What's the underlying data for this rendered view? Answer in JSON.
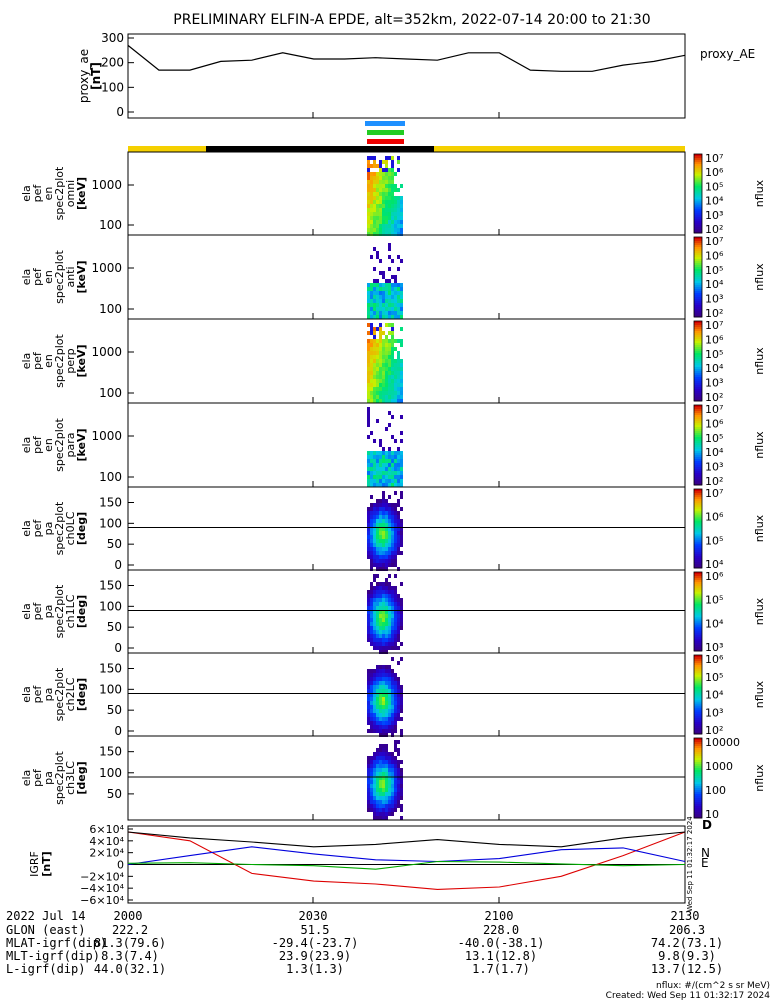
{
  "title": "PRELIMINARY ELFIN-A EPDE, alt=352km, 2022-07-14 20:00 to 21:30",
  "colors": {
    "sunlit": "#f5d000",
    "shadow": "#000000",
    "bar_blue": "#1e90ff",
    "bar_green": "#22cc22",
    "bar_red": "#ee0000"
  },
  "panels": [
    {
      "id": "ae",
      "ylabel": [
        "proxy_ae",
        "[nT]"
      ],
      "yticks": [
        "0",
        "100",
        "200",
        "300"
      ],
      "right_label": "proxy_AE"
    },
    {
      "id": "omni",
      "ylabel": [
        "ela",
        "pef",
        "en",
        "spec2plot",
        "omni",
        "[keV]"
      ],
      "yticks": [
        "100",
        "1000"
      ],
      "cb_ticks": [
        "10²",
        "10³",
        "10⁴",
        "10⁵",
        "10⁶",
        "10⁷"
      ],
      "cb_label": "nflux"
    },
    {
      "id": "anti",
      "ylabel": [
        "ela",
        "pef",
        "en",
        "spec2plot",
        "anti",
        "[keV]"
      ],
      "yticks": [
        "100",
        "1000"
      ],
      "cb_ticks": [
        "10²",
        "10³",
        "10⁴",
        "10⁵",
        "10⁶",
        "10⁷"
      ],
      "cb_label": "nflux"
    },
    {
      "id": "perp",
      "ylabel": [
        "ela",
        "pef",
        "en",
        "spec2plot",
        "perp",
        "[keV]"
      ],
      "yticks": [
        "100",
        "1000"
      ],
      "cb_ticks": [
        "10²",
        "10³",
        "10⁴",
        "10⁵",
        "10⁶",
        "10⁷"
      ],
      "cb_label": "nflux"
    },
    {
      "id": "para",
      "ylabel": [
        "ela",
        "pef",
        "en",
        "spec2plot",
        "para",
        "[keV]"
      ],
      "yticks": [
        "100",
        "1000"
      ],
      "cb_ticks": [
        "10²",
        "10³",
        "10⁴",
        "10⁵",
        "10⁶",
        "10⁷"
      ],
      "cb_label": "nflux"
    },
    {
      "id": "ch0",
      "ylabel": [
        "ela",
        "pef",
        "pa",
        "spec2plot",
        "ch0LC",
        "[deg]"
      ],
      "yticks": [
        "0",
        "50",
        "100",
        "150"
      ],
      "cb_ticks": [
        "10⁴",
        "10⁵",
        "10⁶",
        "10⁷"
      ],
      "cb_label": "nflux"
    },
    {
      "id": "ch1",
      "ylabel": [
        "ela",
        "pef",
        "pa",
        "spec2plot",
        "ch1LC",
        "[deg]"
      ],
      "yticks": [
        "0",
        "50",
        "100",
        "150"
      ],
      "cb_ticks": [
        "10³",
        "10⁴",
        "10⁵",
        "10⁶"
      ],
      "cb_label": "nflux"
    },
    {
      "id": "ch2",
      "ylabel": [
        "ela",
        "pef",
        "pa",
        "spec2plot",
        "ch2LC",
        "[deg]"
      ],
      "yticks": [
        "0",
        "50",
        "100",
        "150"
      ],
      "cb_ticks": [
        "10²",
        "10³",
        "10⁴",
        "10⁵",
        "10⁶"
      ],
      "cb_label": "nflux"
    },
    {
      "id": "ch3",
      "ylabel": [
        "ela",
        "pef",
        "pa",
        "spec2plot",
        "ch3LC",
        "[deg]"
      ],
      "yticks": [
        "50",
        "100",
        "150"
      ],
      "cb_ticks": [
        "10",
        "100",
        "1000",
        "10000"
      ],
      "cb_label": "nflux"
    },
    {
      "id": "igrf",
      "ylabel": [
        "IGRF",
        "[nT]"
      ],
      "yticks": [
        "−6×10⁴",
        "−4×10⁴",
        "−2×10⁴",
        "0",
        "2×10⁴",
        "4×10⁴",
        "6×10⁴"
      ],
      "legend": [
        "D",
        "N",
        "E"
      ]
    }
  ],
  "xticks": [
    "2000",
    "2030",
    "2100",
    "2130"
  ],
  "orbit_table": {
    "date": "2022 Jul 14",
    "rows": [
      {
        "label": "GLON (east)",
        "values": [
          "222.2",
          "51.5",
          "228.0",
          "206.3"
        ]
      },
      {
        "label": "MLAT-igrf(dip)",
        "values": [
          "81.3(79.6)",
          "-29.4(-23.7)",
          "-40.0(-38.1)",
          "74.2(73.1)"
        ]
      },
      {
        "label": "MLT-igrf(dip)",
        "values": [
          "8.3(7.4)",
          "23.9(23.9)",
          "13.1(12.8)",
          "9.8(9.3)"
        ]
      },
      {
        "label": "L-igrf(dip)",
        "values": [
          "44.0(32.1)",
          "1.3(1.3)",
          "1.7(1.7)",
          "13.7(12.5)"
        ]
      }
    ]
  },
  "footer": {
    "units": "nflux: #/(cm^2 s sr MeV)",
    "created": "Created: Wed Sep 11 01:32:17 2024"
  },
  "side_stamp": "Wed Sep 11 01:32:17 2024",
  "chart_data": {
    "type": "line",
    "x_unit": "UT (HHMM)",
    "xlim": [
      "2000",
      "2130"
    ],
    "proxy_ae": {
      "x": [
        "20:00",
        "20:05",
        "20:10",
        "20:15",
        "20:20",
        "20:25",
        "20:30",
        "20:35",
        "20:40",
        "20:45",
        "20:50",
        "20:55",
        "21:00",
        "21:05",
        "21:10",
        "21:15",
        "21:20",
        "21:25",
        "21:30"
      ],
      "y": [
        270,
        170,
        170,
        205,
        210,
        240,
        215,
        215,
        220,
        215,
        210,
        240,
        240,
        170,
        165,
        165,
        190,
        205,
        230
      ],
      "ylim": [
        0,
        300
      ]
    },
    "igrf": {
      "series": [
        {
          "name": "D",
          "x": [
            "20:00",
            "20:10",
            "20:20",
            "20:30",
            "20:40",
            "20:50",
            "21:00",
            "21:10",
            "21:20",
            "21:30"
          ],
          "y": [
            55000,
            40000,
            -15000,
            -28000,
            -33000,
            -42000,
            -38000,
            -20000,
            15000,
            55000
          ]
        },
        {
          "name": "N",
          "x": [
            "20:00",
            "20:10",
            "20:20",
            "20:30",
            "20:40",
            "20:50",
            "21:00",
            "21:10",
            "21:20",
            "21:30"
          ],
          "y": [
            0,
            15000,
            30000,
            18000,
            8000,
            5000,
            10000,
            25000,
            28000,
            5000
          ]
        },
        {
          "name": "E",
          "x": [
            "20:00",
            "20:10",
            "20:20",
            "20:30",
            "20:40",
            "20:50",
            "21:00",
            "21:10",
            "21:20",
            "21:30"
          ],
          "y": [
            2000,
            3000,
            0,
            -2000,
            -8000,
            5000,
            4000,
            1000,
            -2000,
            0
          ]
        },
        {
          "x": [
            "20:00",
            "20:10",
            "20:20",
            "20:30",
            "20:40",
            "20:50",
            "21:00",
            "21:10",
            "21:20",
            "21:30"
          ],
          "y": [
            55000,
            45000,
            38000,
            30000,
            34000,
            42000,
            34000,
            30000,
            45000,
            55000
          ]
        }
      ],
      "ylim": [
        -60000,
        60000
      ]
    }
  }
}
